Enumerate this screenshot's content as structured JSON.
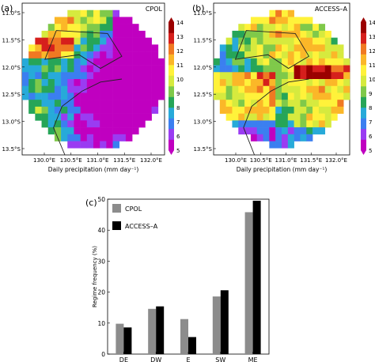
{
  "chart_data": [
    {
      "type": "heatmap",
      "panel_label": "(a)",
      "title": "CPOL",
      "xlabel": "Daily precipitation (mm day⁻¹)",
      "xticks": [
        "130.0°E",
        "130.5°E",
        "131.0°E",
        "131.5°E",
        "132.0°E"
      ],
      "yticks": [
        "11.0°S",
        "11.5°S",
        "12.0°S",
        "12.5°S",
        "13.0°S",
        "13.5°S"
      ],
      "colorbar_ticks": [
        "14",
        "13",
        "12",
        "11",
        "10",
        "9",
        "8",
        "7",
        "6",
        "5"
      ],
      "colorbar_range": [
        5,
        14
      ],
      "colormap": [
        "#c000c0",
        "#9a3cf2",
        "#3b7ff0",
        "#27aad9",
        "#26a558",
        "#7fc94a",
        "#d6ea3e",
        "#fff23a",
        "#fbb728",
        "#f07922",
        "#d61f1c",
        "#9b0000"
      ]
    },
    {
      "type": "heatmap",
      "panel_label": "(b)",
      "title": "ACCESS–A",
      "xlabel": "Daily precipitation (mm day⁻¹)",
      "xticks": [
        "130.0°E",
        "130.5°E",
        "131.0°E",
        "131.5°E",
        "132.0°E"
      ],
      "yticks": [
        "11.0°S",
        "11.5°S",
        "12.0°S",
        "12.5°S",
        "13.0°S",
        "13.5°S"
      ],
      "colorbar_ticks": [
        "14",
        "13",
        "12",
        "11",
        "10",
        "9",
        "8",
        "7",
        "6",
        "5"
      ],
      "colorbar_range": [
        5,
        14
      ]
    },
    {
      "type": "bar",
      "panel_label": "(c)",
      "categories": [
        "DE",
        "DW",
        "E",
        "SW",
        "ME"
      ],
      "series": [
        {
          "name": "CPOL",
          "color": "#8c8c8c",
          "values": [
            9.8,
            14.6,
            11.3,
            18.6,
            45.8
          ]
        },
        {
          "name": "ACCESS–A",
          "color": "#000000",
          "values": [
            8.6,
            15.4,
            5.5,
            20.6,
            49.5
          ]
        }
      ],
      "ylabel": "Regime frequency (%)",
      "ylim": [
        0,
        50
      ],
      "yticks": [
        "0",
        "10",
        "20",
        "30",
        "40",
        "50"
      ],
      "legend_position": "top-left"
    }
  ]
}
